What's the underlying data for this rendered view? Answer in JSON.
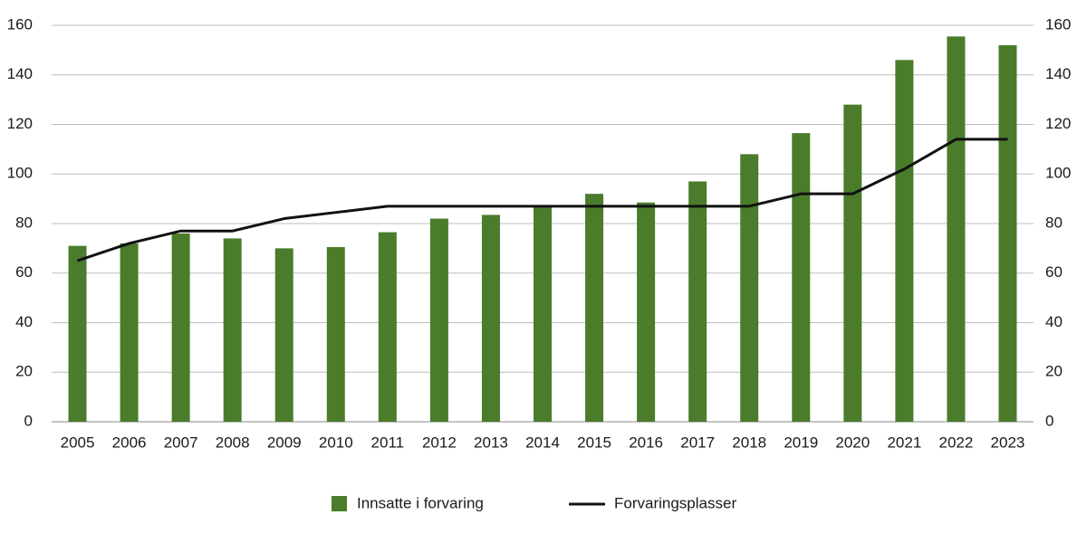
{
  "chart_data": {
    "type": "bar",
    "categories": [
      "2005",
      "2006",
      "2007",
      "2008",
      "2009",
      "2010",
      "2011",
      "2012",
      "2013",
      "2014",
      "2015",
      "2016",
      "2017",
      "2018",
      "2019",
      "2020",
      "2021",
      "2022",
      "2023"
    ],
    "series": [
      {
        "name": "Innsatte i forvaring",
        "type": "bar",
        "color": "#4a7c2b",
        "values": [
          71,
          72,
          76,
          74,
          70,
          70.5,
          76.5,
          82,
          83.5,
          87,
          92,
          88.5,
          97,
          108,
          116.5,
          128,
          146,
          155.5,
          152
        ]
      },
      {
        "name": "Forvaringsplasser",
        "type": "line",
        "color": "#111111",
        "axis": "y2",
        "values": [
          65,
          72,
          77,
          77,
          82,
          84.5,
          87,
          87,
          87,
          87,
          87,
          87,
          87,
          87,
          92,
          92,
          102,
          114,
          114
        ]
      }
    ],
    "ylim": [
      0,
      160
    ],
    "yticks": [
      0,
      20,
      40,
      60,
      80,
      100,
      120,
      140,
      160
    ],
    "y2lim": [
      0,
      160
    ],
    "y2ticks": [
      0,
      20,
      40,
      60,
      80,
      100,
      120,
      140,
      160
    ],
    "grid": true,
    "legend": "bottom"
  }
}
